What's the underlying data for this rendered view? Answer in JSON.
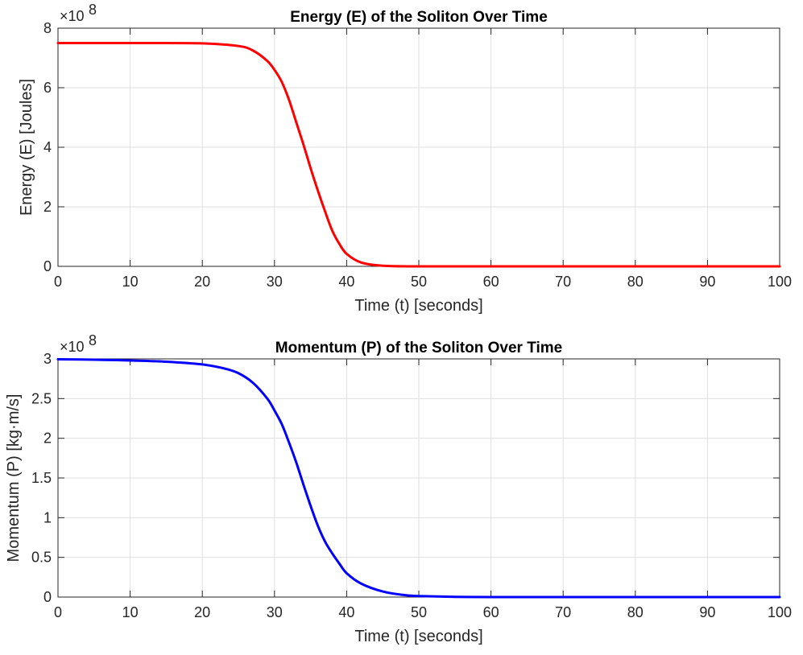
{
  "chart_data": [
    {
      "type": "line",
      "title": "Energy (E) of the Soliton Over Time",
      "xlabel": "Time (t) [seconds]",
      "ylabel": "Energy (E) [Joules]",
      "xlim": [
        0,
        100
      ],
      "ylim": [
        0,
        8
      ],
      "y_multiplier": "×10",
      "y_exponent": "8",
      "grid": true,
      "x_ticks": [
        "0",
        "10",
        "20",
        "30",
        "40",
        "50",
        "60",
        "70",
        "80",
        "90",
        "100"
      ],
      "y_ticks": [
        "0",
        "2",
        "4",
        "6",
        "8"
      ],
      "series": [
        {
          "name": "Energy",
          "color": "#ff0000",
          "x": [
            0,
            10,
            20,
            25,
            27,
            29,
            30,
            31,
            32,
            33,
            34,
            35,
            36,
            37,
            38,
            39,
            40,
            42,
            45,
            50,
            60,
            70,
            80,
            90,
            100
          ],
          "y": [
            7.5,
            7.5,
            7.49,
            7.4,
            7.25,
            6.9,
            6.6,
            6.2,
            5.6,
            4.85,
            4.1,
            3.3,
            2.55,
            1.85,
            1.2,
            0.75,
            0.42,
            0.13,
            0.02,
            0.0,
            0.0,
            0.0,
            0.0,
            0.0,
            0.0
          ]
        }
      ]
    },
    {
      "type": "line",
      "title": "Momentum (P) of the Soliton Over Time",
      "xlabel": "Time (t) [seconds]",
      "ylabel": "Momentum (P) [kg·m/s]",
      "xlim": [
        0,
        100
      ],
      "ylim": [
        0,
        3
      ],
      "y_multiplier": "×10",
      "y_exponent": "8",
      "grid": true,
      "x_ticks": [
        "0",
        "10",
        "20",
        "30",
        "40",
        "50",
        "60",
        "70",
        "80",
        "90",
        "100"
      ],
      "y_ticks": [
        "0",
        "0.5",
        "1",
        "1.5",
        "2",
        "2.5",
        "3"
      ],
      "series": [
        {
          "name": "Momentum",
          "color": "#0000ff",
          "x": [
            0,
            5,
            10,
            15,
            20,
            23,
            25,
            27,
            29,
            30,
            31,
            32,
            33,
            34,
            35,
            36,
            37,
            38,
            39,
            40,
            42,
            45,
            48,
            50,
            55,
            60,
            70,
            80,
            90,
            100
          ],
          "y": [
            2.995,
            2.99,
            2.98,
            2.965,
            2.93,
            2.88,
            2.82,
            2.7,
            2.5,
            2.35,
            2.18,
            1.95,
            1.7,
            1.42,
            1.15,
            0.9,
            0.7,
            0.55,
            0.42,
            0.3,
            0.17,
            0.07,
            0.025,
            0.013,
            0.003,
            0.0,
            0.0,
            0.0,
            0.0,
            0.0
          ]
        }
      ]
    }
  ]
}
